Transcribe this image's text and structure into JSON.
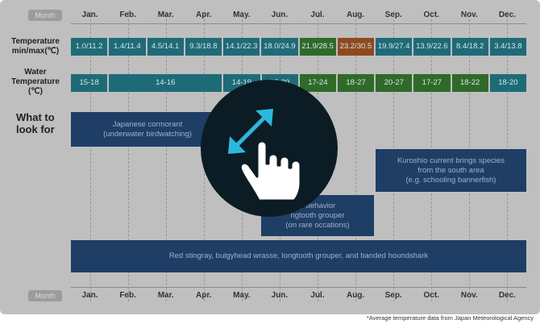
{
  "header_label": "Month",
  "months": [
    "Jan.",
    "Feb.",
    "Mar.",
    "Apr.",
    "May.",
    "Jun.",
    "Jul.",
    "Aug.",
    "Sep.",
    "Oct.",
    "Nov.",
    "Dec."
  ],
  "temperature": {
    "label": "Temperature\nmin/max(℃)",
    "values": [
      "1.0/11.2",
      "1.4/11.4",
      "4.5/14.1",
      "9.3/18.8",
      "14.1/22.3",
      "18.0/24.9",
      "21.9/28.5",
      "23.2/30.5",
      "19.9/27.4",
      "13.9/22.6",
      "8.4/18.2",
      "3.4/13.8"
    ]
  },
  "water_temperature": {
    "label": "Water\nTemperature\n(℃)",
    "jan": "15-18",
    "feb_apr": "14-16",
    "may": "14-19",
    "jun": "15-20",
    "jul": "17-24",
    "aug": "18-27",
    "sep": "20-27",
    "oct": "17-27",
    "nov": "18-22",
    "dec": "18-20"
  },
  "what_to_look_for": {
    "label": "What to\nlook for",
    "cormorant": "Japanese cormorant\n(underwater birdwatching)",
    "kuroshio": "Kuroshio current brings species\nfrom the south area\n(e.g. schooling bannerfish)",
    "grouper": "p behavior\nngtooth grouper\n(on rare occations)",
    "year_round": "Red stingray, bulgyhead wrasse, longtooth grouper, and banded houndshark"
  },
  "footnote": "*Average temperature data from Japan Meteorological Agency",
  "overlay_icon": "drag-resize-hand-icon",
  "colors": {
    "teal": "#1e6b78",
    "green": "#2f6a2a",
    "orange": "#8d4a1f",
    "navy": "#1f3e66",
    "overlay": "#0b1c24",
    "arrow": "#2eb7e0"
  }
}
